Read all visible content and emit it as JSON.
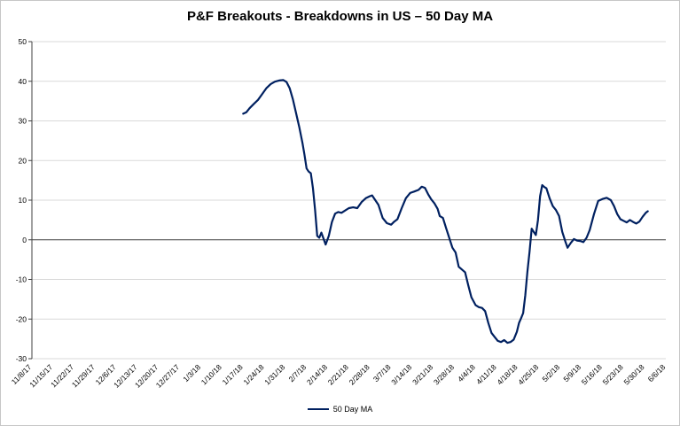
{
  "title": "P&F Breakouts - Breakdowns in US – 50 Day MA",
  "chart_data": {
    "type": "line",
    "title": "P&F Breakouts - Breakdowns in US – 50 Day MA",
    "xlabel": "",
    "ylabel": "",
    "xlim": [
      0,
      30
    ],
    "ylim": [
      -30,
      50
    ],
    "y_ticks": [
      50,
      40,
      30,
      20,
      10,
      0,
      -10,
      -20,
      -30
    ],
    "x_tick_labels": [
      "11/8/17",
      "11/15/17",
      "11/22/17",
      "11/29/17",
      "12/6/17",
      "12/13/17",
      "12/20/17",
      "12/27/17",
      "1/3/18",
      "1/10/18",
      "1/17/18",
      "1/24/18",
      "1/31/18",
      "2/7/18",
      "2/14/18",
      "2/21/18",
      "2/28/18",
      "3/7/18",
      "3/14/18",
      "3/21/18",
      "3/28/18",
      "4/4/18",
      "4/11/18",
      "4/18/18",
      "4/25/18",
      "5/2/18",
      "5/9/18",
      "5/16/18",
      "5/23/18",
      "5/30/18",
      "6/6/18"
    ],
    "grid": "horizontal",
    "legend_position": "bottom",
    "colors": {
      "line": "#002060",
      "grid": "#d9d9d9",
      "axis": "#404040",
      "text": "#000000"
    },
    "series": [
      {
        "name": "50 Day MA",
        "color": "#002060",
        "points": [
          [
            10.0,
            31.8
          ],
          [
            10.15,
            32.2
          ],
          [
            10.3,
            33.2
          ],
          [
            10.5,
            34.3
          ],
          [
            10.7,
            35.3
          ],
          [
            10.9,
            36.8
          ],
          [
            11.1,
            38.3
          ],
          [
            11.3,
            39.3
          ],
          [
            11.5,
            39.9
          ],
          [
            11.7,
            40.2
          ],
          [
            11.9,
            40.3
          ],
          [
            12.05,
            39.8
          ],
          [
            12.2,
            38.2
          ],
          [
            12.35,
            35.5
          ],
          [
            12.5,
            32.0
          ],
          [
            12.65,
            28.5
          ],
          [
            12.8,
            24.5
          ],
          [
            12.9,
            21.5
          ],
          [
            13.0,
            18.0
          ],
          [
            13.1,
            17.2
          ],
          [
            13.2,
            16.8
          ],
          [
            13.3,
            13.0
          ],
          [
            13.4,
            7.5
          ],
          [
            13.5,
            1.0
          ],
          [
            13.6,
            0.5
          ],
          [
            13.7,
            1.8
          ],
          [
            13.8,
            0.3
          ],
          [
            13.9,
            -1.2
          ],
          [
            14.05,
            1.0
          ],
          [
            14.2,
            4.5
          ],
          [
            14.35,
            6.6
          ],
          [
            14.5,
            7.0
          ],
          [
            14.65,
            6.8
          ],
          [
            14.8,
            7.3
          ],
          [
            15.0,
            8.0
          ],
          [
            15.2,
            8.2
          ],
          [
            15.4,
            8.0
          ],
          [
            15.6,
            9.5
          ],
          [
            15.8,
            10.5
          ],
          [
            16.0,
            11.0
          ],
          [
            16.1,
            11.2
          ],
          [
            16.25,
            10.0
          ],
          [
            16.4,
            8.8
          ],
          [
            16.6,
            5.5
          ],
          [
            16.8,
            4.2
          ],
          [
            17.0,
            3.8
          ],
          [
            17.15,
            4.6
          ],
          [
            17.3,
            5.2
          ],
          [
            17.5,
            8.0
          ],
          [
            17.7,
            10.5
          ],
          [
            17.9,
            11.8
          ],
          [
            18.1,
            12.2
          ],
          [
            18.3,
            12.6
          ],
          [
            18.45,
            13.4
          ],
          [
            18.6,
            13.1
          ],
          [
            18.75,
            11.5
          ],
          [
            18.9,
            10.2
          ],
          [
            19.05,
            9.2
          ],
          [
            19.2,
            7.8
          ],
          [
            19.3,
            6.0
          ],
          [
            19.45,
            5.5
          ],
          [
            19.6,
            3.0
          ],
          [
            19.75,
            0.5
          ],
          [
            19.9,
            -2.0
          ],
          [
            20.05,
            -3.2
          ],
          [
            20.2,
            -6.8
          ],
          [
            20.35,
            -7.5
          ],
          [
            20.5,
            -8.2
          ],
          [
            20.65,
            -11.5
          ],
          [
            20.8,
            -14.5
          ],
          [
            21.0,
            -16.5
          ],
          [
            21.15,
            -17.0
          ],
          [
            21.3,
            -17.2
          ],
          [
            21.45,
            -18.0
          ],
          [
            21.6,
            -21.0
          ],
          [
            21.75,
            -23.5
          ],
          [
            21.9,
            -24.5
          ],
          [
            22.05,
            -25.5
          ],
          [
            22.2,
            -25.8
          ],
          [
            22.35,
            -25.3
          ],
          [
            22.5,
            -26.0
          ],
          [
            22.65,
            -25.8
          ],
          [
            22.8,
            -25.2
          ],
          [
            22.95,
            -23.2
          ],
          [
            23.05,
            -21.0
          ],
          [
            23.15,
            -19.8
          ],
          [
            23.25,
            -18.5
          ],
          [
            23.35,
            -14.0
          ],
          [
            23.45,
            -8.0
          ],
          [
            23.55,
            -3.0
          ],
          [
            23.65,
            2.8
          ],
          [
            23.75,
            2.0
          ],
          [
            23.85,
            1.2
          ],
          [
            23.95,
            5.0
          ],
          [
            24.05,
            11.0
          ],
          [
            24.15,
            13.8
          ],
          [
            24.25,
            13.3
          ],
          [
            24.35,
            13.0
          ],
          [
            24.5,
            10.5
          ],
          [
            24.65,
            8.5
          ],
          [
            24.8,
            7.5
          ],
          [
            24.95,
            6.0
          ],
          [
            25.1,
            2.0
          ],
          [
            25.25,
            -0.5
          ],
          [
            25.35,
            -2.0
          ],
          [
            25.5,
            -0.8
          ],
          [
            25.65,
            0.2
          ],
          [
            25.8,
            -0.2
          ],
          [
            25.95,
            -0.3
          ],
          [
            26.1,
            -0.6
          ],
          [
            26.25,
            0.5
          ],
          [
            26.4,
            2.5
          ],
          [
            26.6,
            6.5
          ],
          [
            26.8,
            9.8
          ],
          [
            27.0,
            10.3
          ],
          [
            27.2,
            10.6
          ],
          [
            27.4,
            10.0
          ],
          [
            27.55,
            8.5
          ],
          [
            27.7,
            6.5
          ],
          [
            27.85,
            5.2
          ],
          [
            28.0,
            4.8
          ],
          [
            28.15,
            4.4
          ],
          [
            28.3,
            5.0
          ],
          [
            28.45,
            4.5
          ],
          [
            28.6,
            4.1
          ],
          [
            28.75,
            4.6
          ],
          [
            28.9,
            5.8
          ],
          [
            29.05,
            6.8
          ],
          [
            29.15,
            7.2
          ]
        ]
      }
    ]
  },
  "legend": {
    "label": "50 Day MA"
  }
}
